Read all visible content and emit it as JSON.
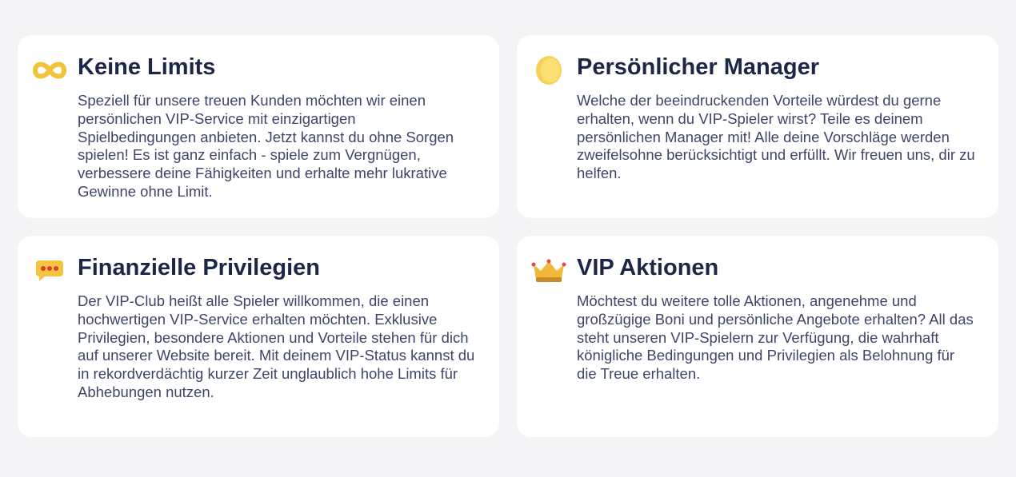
{
  "cards": [
    {
      "icon": "infinity-icon",
      "title": "Keine Limits",
      "text": "Speziell für unsere treuen Kunden möchten wir einen persönlichen VIP-Service mit einzigartigen Spielbedingungen anbieten. Jetzt kannst du ohne Sorgen spielen! Es ist ganz einfach - spiele zum Vergnügen, verbessere deine Fähigkeiten und erhalte mehr lukrative Gewinne ohne Limit."
    },
    {
      "icon": "coin-icon",
      "title": "Persönlicher Manager",
      "text": "Welche der beeindruckenden Vorteile würdest du gerne erhalten, wenn du VIP-Spieler wirst? Teile es deinem persönlichen Manager mit! Alle deine Vorschläge werden zweifelsohne berücksichtigt und erfüllt. Wir freuen uns, dir zu helfen."
    },
    {
      "icon": "chat-bubble-icon",
      "title": "Finanzielle Privilegien",
      "text": "Der VIP-Club heißt alle Spieler willkommen, die einen hochwertigen VIP-Service erhalten möchten. Exklusive Privilegien, besondere Aktionen und Vorteile stehen für dich auf unserer Website bereit. Mit deinem VIP-Status kannst du in rekordverdächtig kurzer Zeit unglaublich hohe Limits für Abhebungen nutzen."
    },
    {
      "icon": "crown-icon",
      "title": "VIP Aktionen",
      "text": "Möchtest du weitere tolle Aktionen, angenehme und großzügige Boni und persönliche Angebote erhalten? All das steht unseren VIP-Spielern zur Verfügung, die wahrhaft königliche Bedingungen und Privilegien als Belohnung für die Treue erhalten."
    }
  ]
}
